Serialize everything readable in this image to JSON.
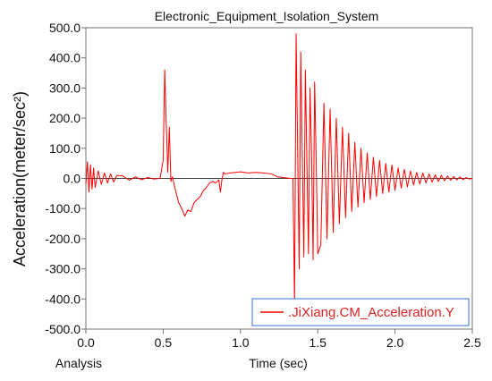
{
  "window": {
    "title": "Electronic_Equipment_Isolation_System"
  },
  "chart_data": {
    "type": "line",
    "title": "Electronic_Equipment_Isolation_System",
    "xlabel": "Time (sec)",
    "ylabel": "Acceleration(meter/sec²)",
    "bottom_left_label": "Analysis",
    "xlim": [
      0.0,
      2.5
    ],
    "ylim": [
      -500.0,
      500.0
    ],
    "x_ticks": [
      "0.0",
      "0.5",
      "1.0",
      "1.5",
      "2.0",
      "2.5"
    ],
    "y_ticks": [
      "500.0",
      "400.0",
      "300.0",
      "200.0",
      "100.0",
      "0.0",
      "-100.0",
      "-200.0",
      "-300.0",
      "-400.0",
      "-500.0"
    ],
    "grid": false,
    "legend_position": "bottom-right",
    "series": [
      {
        "name": ".JiXiang.CM_Acceleration.Y",
        "color": "#ff0000",
        "x": [
          0.0,
          0.01,
          0.02,
          0.03,
          0.04,
          0.05,
          0.06,
          0.08,
          0.1,
          0.12,
          0.14,
          0.16,
          0.18,
          0.2,
          0.24,
          0.28,
          0.32,
          0.36,
          0.4,
          0.44,
          0.48,
          0.5,
          0.51,
          0.52,
          0.53,
          0.54,
          0.55,
          0.56,
          0.58,
          0.6,
          0.62,
          0.64,
          0.66,
          0.68,
          0.7,
          0.72,
          0.74,
          0.76,
          0.78,
          0.8,
          0.82,
          0.84,
          0.86,
          0.87,
          0.88,
          0.89,
          0.9,
          0.93,
          0.97,
          1.0,
          1.05,
          1.1,
          1.15,
          1.2,
          1.24,
          1.28,
          1.32,
          1.34,
          1.35,
          1.36,
          1.37,
          1.38,
          1.39,
          1.4,
          1.41,
          1.42,
          1.43,
          1.44,
          1.45,
          1.46,
          1.47,
          1.48,
          1.49,
          1.5,
          1.52,
          1.54,
          1.56,
          1.58,
          1.6,
          1.62,
          1.64,
          1.66,
          1.68,
          1.7,
          1.72,
          1.74,
          1.76,
          1.78,
          1.8,
          1.82,
          1.84,
          1.86,
          1.88,
          1.9,
          1.92,
          1.94,
          1.96,
          1.98,
          2.0,
          2.02,
          2.04,
          2.06,
          2.08,
          2.1,
          2.12,
          2.14,
          2.16,
          2.18,
          2.2,
          2.22,
          2.24,
          2.26,
          2.28,
          2.3,
          2.32,
          2.34,
          2.36,
          2.38,
          2.4,
          2.42,
          2.44,
          2.46,
          2.48,
          2.5
        ],
        "y": [
          -20,
          55,
          -45,
          45,
          -35,
          35,
          -30,
          25,
          -20,
          18,
          -15,
          15,
          -12,
          10,
          8,
          -6,
          5,
          -4,
          3,
          -2,
          0,
          60,
          360,
          180,
          20,
          170,
          -10,
          5,
          -40,
          -80,
          -100,
          -125,
          -105,
          -110,
          -80,
          -70,
          -60,
          -40,
          -30,
          -15,
          -10,
          -15,
          -5,
          -45,
          -5,
          20,
          15,
          18,
          20,
          22,
          18,
          20,
          18,
          15,
          5,
          3,
          0,
          0,
          -420,
          480,
          100,
          -300,
          420,
          80,
          -260,
          360,
          50,
          -250,
          300,
          80,
          -270,
          320,
          60,
          -250,
          -220,
          250,
          -200,
          230,
          -180,
          200,
          -150,
          170,
          -130,
          150,
          -110,
          120,
          -95,
          100,
          -80,
          85,
          -70,
          70,
          -60,
          60,
          -50,
          50,
          -45,
          45,
          -40,
          35,
          -32,
          30,
          -28,
          25,
          -22,
          20,
          -18,
          18,
          -15,
          15,
          -12,
          12,
          -10,
          10,
          -8,
          8,
          -6,
          6,
          -5,
          5,
          -4,
          3,
          -2,
          0
        ]
      }
    ]
  }
}
